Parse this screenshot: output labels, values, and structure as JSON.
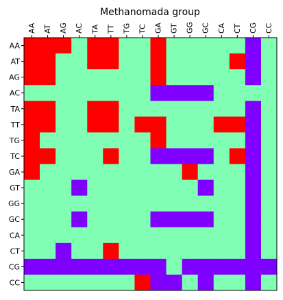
{
  "chart_data": {
    "type": "heatmap",
    "title": "Methanomada group",
    "xlabel": "",
    "ylabel": "",
    "x_categories": [
      "AA",
      "AT",
      "AG",
      "AC",
      "TA",
      "TT",
      "TG",
      "TC",
      "GA",
      "GT",
      "GG",
      "GC",
      "CA",
      "CT",
      "CG",
      "CC"
    ],
    "y_categories": [
      "AA",
      "AT",
      "AG",
      "AC",
      "TA",
      "TT",
      "TG",
      "TC",
      "GA",
      "GT",
      "GG",
      "GC",
      "CA",
      "CT",
      "CG",
      "CC"
    ],
    "x_tick_position": "top",
    "x_tick_rotation": "vertical",
    "colormap": [
      "#8000ff",
      "#80ffb4",
      "#ff0000"
    ],
    "value_levels": {
      "low": 0,
      "mid": 1,
      "high": 2
    },
    "grid": false,
    "values": [
      [
        2,
        2,
        2,
        1,
        2,
        2,
        1,
        1,
        2,
        1,
        1,
        1,
        1,
        1,
        0,
        1
      ],
      [
        2,
        2,
        1,
        1,
        2,
        2,
        1,
        1,
        2,
        1,
        1,
        1,
        1,
        2,
        0,
        1
      ],
      [
        2,
        2,
        1,
        1,
        1,
        1,
        1,
        1,
        2,
        1,
        1,
        1,
        1,
        1,
        0,
        1
      ],
      [
        1,
        1,
        1,
        1,
        1,
        1,
        1,
        1,
        0,
        0,
        0,
        0,
        1,
        1,
        1,
        1
      ],
      [
        2,
        2,
        1,
        1,
        2,
        2,
        1,
        1,
        1,
        1,
        1,
        1,
        1,
        1,
        0,
        1
      ],
      [
        2,
        2,
        1,
        1,
        2,
        2,
        1,
        2,
        2,
        1,
        1,
        1,
        2,
        2,
        0,
        1
      ],
      [
        2,
        1,
        1,
        1,
        1,
        1,
        1,
        1,
        2,
        1,
        1,
        1,
        1,
        1,
        0,
        1
      ],
      [
        2,
        2,
        1,
        1,
        1,
        2,
        1,
        1,
        0,
        0,
        0,
        0,
        1,
        2,
        0,
        1
      ],
      [
        2,
        1,
        1,
        1,
        1,
        1,
        1,
        1,
        1,
        1,
        2,
        1,
        1,
        1,
        0,
        1
      ],
      [
        1,
        1,
        1,
        0,
        1,
        1,
        1,
        1,
        1,
        1,
        1,
        0,
        1,
        1,
        0,
        1
      ],
      [
        1,
        1,
        1,
        1,
        1,
        1,
        1,
        1,
        1,
        1,
        1,
        1,
        1,
        1,
        0,
        1
      ],
      [
        1,
        1,
        1,
        0,
        1,
        1,
        1,
        1,
        0,
        0,
        0,
        0,
        1,
        1,
        0,
        1
      ],
      [
        1,
        1,
        1,
        1,
        1,
        1,
        1,
        1,
        1,
        1,
        1,
        1,
        1,
        1,
        0,
        1
      ],
      [
        1,
        1,
        0,
        1,
        1,
        2,
        1,
        1,
        1,
        1,
        1,
        1,
        1,
        1,
        0,
        1
      ],
      [
        0,
        0,
        0,
        0,
        0,
        0,
        0,
        0,
        0,
        1,
        0,
        0,
        0,
        0,
        0,
        0
      ],
      [
        1,
        1,
        1,
        1,
        1,
        1,
        1,
        2,
        0,
        0,
        1,
        0,
        1,
        1,
        0,
        1
      ]
    ]
  }
}
